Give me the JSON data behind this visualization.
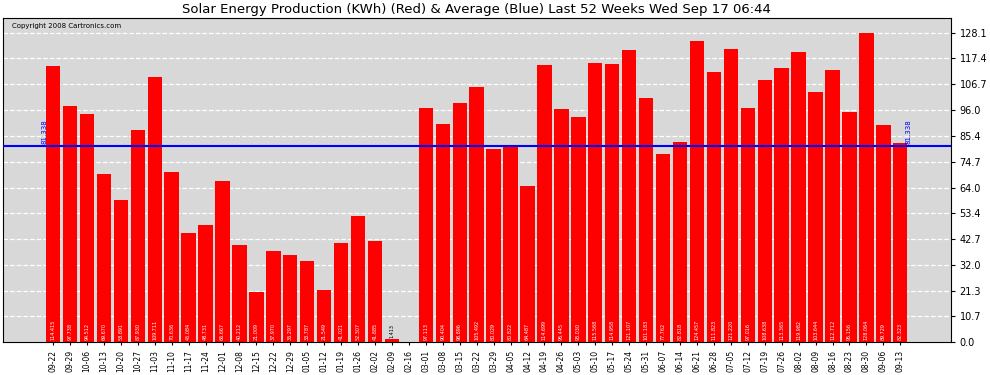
{
  "title": "Solar Energy Production (KWh) (Red) & Average (Blue) Last 52 Weeks Wed Sep 17 06:44",
  "copyright": "Copyright 2008 Cartronics.com",
  "average": 81.338,
  "average_label": "81.338",
  "bar_color": "#ff0000",
  "avg_line_color": "#0000ff",
  "background_color": "#ffffff",
  "plot_bg_color": "#d8d8d8",
  "yticks": [
    0.0,
    10.7,
    21.3,
    32.0,
    42.7,
    53.4,
    64.0,
    74.7,
    85.4,
    96.0,
    106.7,
    117.4,
    128.1
  ],
  "ylim": [
    0,
    134
  ],
  "dates": [
    "09-22",
    "09-29",
    "10-06",
    "10-13",
    "10-20",
    "10-27",
    "11-03",
    "11-10",
    "11-17",
    "11-24",
    "12-01",
    "12-08",
    "12-15",
    "12-22",
    "12-29",
    "01-05",
    "01-12",
    "01-19",
    "01-26",
    "02-02",
    "02-09",
    "02-16",
    "03-01",
    "03-08",
    "03-15",
    "03-22",
    "03-29",
    "04-05",
    "04-12",
    "04-19",
    "04-26",
    "05-03",
    "05-10",
    "05-17",
    "05-24",
    "05-31",
    "06-07",
    "06-14",
    "06-21",
    "06-28",
    "07-05",
    "07-12",
    "07-19",
    "07-26",
    "08-02",
    "08-09",
    "08-16",
    "08-23",
    "08-30",
    "09-06",
    "09-13"
  ],
  "values": [
    114.415,
    97.738,
    94.512,
    69.67,
    58.891,
    87.93,
    109.711,
    70.636,
    45.084,
    48.731,
    66.667,
    40.212,
    21.009,
    37.97,
    36.297,
    33.787,
    21.549,
    41.021,
    52.307,
    41.885,
    1.413,
    0.0,
    97.113,
    90.404,
    98.896,
    105.492,
    80.029,
    80.822,
    64.487,
    114.699,
    96.445,
    93.03,
    115.568,
    114.958,
    121.107,
    101.183,
    77.762,
    82.818,
    124.457,
    111.823,
    121.22,
    97.016,
    108.638,
    113.365,
    119.982,
    103.644,
    112.712,
    95.156,
    128.064,
    89.729,
    82.323
  ]
}
